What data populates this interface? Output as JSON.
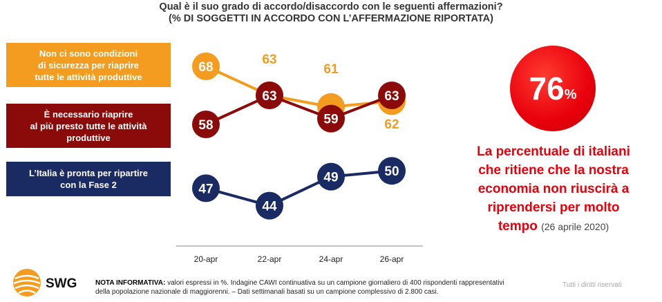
{
  "title_line1": "Qual è il suo grado di accordo/disaccordo con le seguenti affermazioni?",
  "title_line2": "(% DI SOGGETTI IN ACCORDO CON L’AFFERMAZIONE RIPORTATA)",
  "chart_data": {
    "type": "line",
    "x": [
      "20-apr",
      "22-apr",
      "24-apr",
      "26-apr"
    ],
    "series": [
      {
        "name": "Non ci sono condizioni di sicurezza per riaprire tutte le attività produttive",
        "values": [
          68,
          63,
          61,
          62
        ],
        "color": "#f39c1f"
      },
      {
        "name": "È necessario riaprire al più presto tutte le attività produttive",
        "values": [
          58,
          63,
          59,
          63
        ],
        "color": "#8b0a0a"
      },
      {
        "name": "L’Italia è pronta per ripartire con la Fase 2",
        "values": [
          47,
          44,
          49,
          50
        ],
        "color": "#1a2a63"
      }
    ]
  },
  "legend": {
    "orange_l1": "Non ci sono condizioni",
    "orange_l2": "di sicurezza  per riaprire",
    "orange_l3": "tutte le attività produttive",
    "red_l1": "È necessario riaprire",
    "red_l2": "al più presto tutte le attività",
    "red_l3": "produttive",
    "blue_l1": "L’Italia è pronta per ripartire",
    "blue_l2": "con la Fase 2"
  },
  "highlight": {
    "value": "76",
    "unit": "%",
    "text_l1": "La percentuale di italiani",
    "text_l2": "che ritiene che la nostra",
    "text_l3": "economia non riuscirà a",
    "text_l4": "riprendersi per molto",
    "text_l5": "tempo",
    "date": "(26 aprile 2020)",
    "color": "#e8000b"
  },
  "footer": {
    "logo": "SWG",
    "note_label": "NOTA INFORMATIVA:",
    "note_l1": "valori espressi in %. Indagine CAWI continuativa su un campione giornaliero di 400 rispondenti rappresentativi",
    "note_l2": "della popolazione nazionale di maggiorenni. – Dati settimanali basati su un campione complessivo di 2.800 casi.",
    "rights": "Tutti i diritti riservati"
  }
}
